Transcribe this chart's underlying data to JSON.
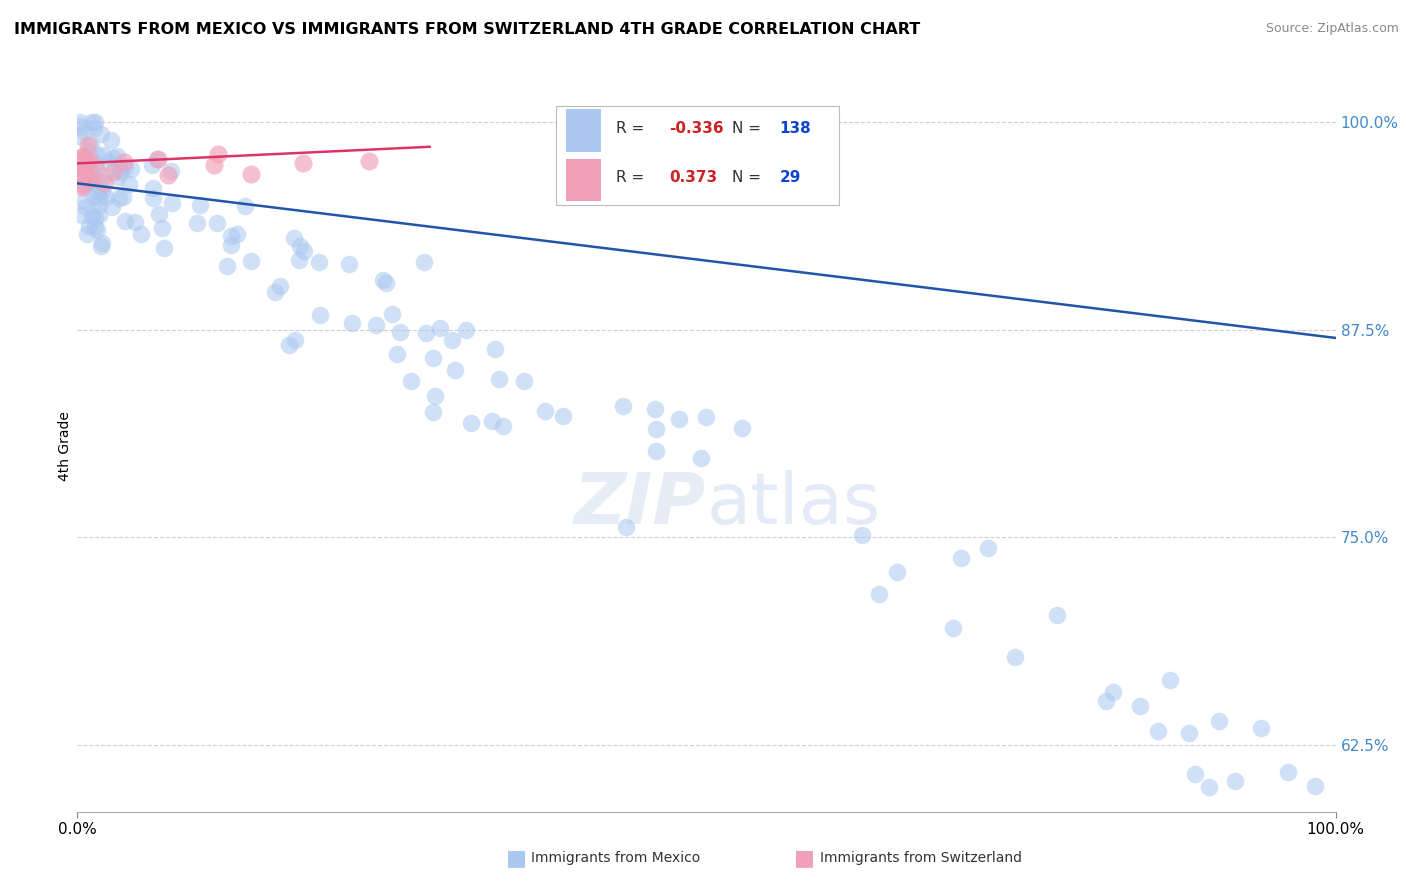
{
  "title": "IMMIGRANTS FROM MEXICO VS IMMIGRANTS FROM SWITZERLAND 4TH GRADE CORRELATION CHART",
  "source": "Source: ZipAtlas.com",
  "ylabel": "4th Grade",
  "xlim": [
    0.0,
    1.0
  ],
  "ylim": [
    0.585,
    1.025
  ],
  "yticks": [
    0.625,
    0.75,
    0.875,
    1.0
  ],
  "ytick_labels": [
    "62.5%",
    "75.0%",
    "87.5%",
    "100.0%"
  ],
  "blue_R": -0.336,
  "blue_N": 138,
  "pink_R": 0.373,
  "pink_N": 29,
  "blue_color": "#aac8f0",
  "pink_color": "#f0a0b8",
  "blue_line_color": "#2255aa",
  "pink_line_color": "#dd3366",
  "legend_blue_label": "Immigrants from Mexico",
  "legend_pink_label": "Immigrants from Switzerland",
  "blue_line_x0": 0.0,
  "blue_line_x1": 1.0,
  "blue_line_y0": 0.963,
  "blue_line_y1": 0.87,
  "pink_line_x0": 0.0,
  "pink_line_x1": 0.28,
  "pink_line_y0": 0.975,
  "pink_line_y1": 0.985
}
